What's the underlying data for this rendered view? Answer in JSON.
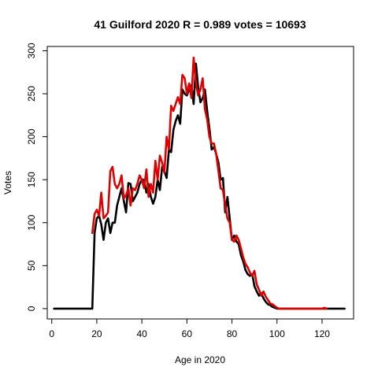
{
  "chart_data": {
    "type": "line",
    "title": "41 Guilford 2020 R = 0.989 votes = 10693",
    "xlabel": "Age in 2020",
    "ylabel": "Votes",
    "xlim": [
      -2,
      134
    ],
    "ylim": [
      -12,
      305
    ],
    "xticks": [
      0,
      20,
      40,
      60,
      80,
      100,
      120
    ],
    "yticks": [
      0,
      50,
      100,
      150,
      200,
      250,
      300
    ],
    "grid": false,
    "series": [
      {
        "color": "#000000",
        "x": [
          1,
          2,
          3,
          4,
          5,
          6,
          7,
          8,
          9,
          10,
          11,
          12,
          13,
          14,
          15,
          16,
          17,
          18,
          19,
          20,
          21,
          22,
          23,
          24,
          25,
          26,
          27,
          28,
          29,
          30,
          31,
          32,
          33,
          34,
          35,
          36,
          37,
          38,
          39,
          40,
          41,
          42,
          43,
          44,
          45,
          46,
          47,
          48,
          49,
          50,
          51,
          52,
          53,
          54,
          55,
          56,
          57,
          58,
          59,
          60,
          61,
          62,
          63,
          64,
          65,
          66,
          67,
          68,
          69,
          70,
          71,
          72,
          73,
          74,
          75,
          76,
          77,
          78,
          79,
          80,
          81,
          82,
          83,
          84,
          85,
          86,
          87,
          88,
          89,
          90,
          91,
          92,
          93,
          94,
          95,
          96,
          97,
          98,
          99,
          100,
          101,
          102,
          103,
          104,
          105,
          106,
          107,
          108,
          109,
          110,
          111,
          112,
          113,
          114,
          115,
          116,
          117,
          118,
          119,
          120,
          121,
          122,
          123,
          124,
          125,
          126,
          127,
          128,
          129,
          130
        ],
        "y": [
          0,
          0,
          0,
          0,
          0,
          0,
          0,
          0,
          0,
          0,
          0,
          0,
          0,
          0,
          0,
          0,
          0,
          0,
          88,
          105,
          108,
          98,
          80,
          100,
          105,
          88,
          100,
          100,
          120,
          130,
          140,
          125,
          112,
          146,
          145,
          125,
          130,
          135,
          145,
          150,
          150,
          135,
          145,
          130,
          122,
          130,
          150,
          138,
          165,
          160,
          152,
          185,
          182,
          208,
          218,
          225,
          215,
          255,
          250,
          248,
          255,
          260,
          238,
          285,
          258,
          240,
          245,
          255,
          230,
          210,
          185,
          188,
          180,
          170,
          150,
          152,
          112,
          130,
          105,
          80,
          85,
          78,
          75,
          62,
          55,
          45,
          40,
          38,
          40,
          26,
          20,
          15,
          18,
          12,
          8,
          5,
          4,
          2,
          1,
          0,
          0,
          0,
          0,
          0,
          0,
          0,
          0,
          0,
          0,
          0,
          0,
          0,
          0,
          0,
          0,
          0,
          0,
          0,
          0,
          0,
          0,
          0,
          0,
          0,
          0,
          0,
          0,
          0,
          0,
          0
        ]
      },
      {
        "color": "#e00000",
        "x": [
          18,
          19,
          20,
          21,
          22,
          23,
          24,
          25,
          26,
          27,
          28,
          29,
          30,
          31,
          32,
          33,
          34,
          35,
          36,
          37,
          38,
          39,
          40,
          41,
          42,
          43,
          44,
          45,
          46,
          47,
          48,
          49,
          50,
          51,
          52,
          53,
          54,
          55,
          56,
          57,
          58,
          59,
          60,
          61,
          62,
          63,
          64,
          65,
          66,
          67,
          68,
          69,
          70,
          71,
          72,
          73,
          74,
          75,
          76,
          77,
          78,
          79,
          80,
          81,
          82,
          83,
          84,
          85,
          86,
          87,
          88,
          89,
          90,
          91,
          92,
          93,
          94,
          95,
          96,
          97,
          98,
          99,
          100,
          101,
          102,
          103,
          104,
          105,
          106,
          107,
          108,
          109,
          110,
          111,
          112,
          118,
          119,
          120,
          121,
          122
        ],
        "y": [
          88,
          110,
          115,
          108,
          135,
          105,
          108,
          112,
          160,
          165,
          145,
          140,
          145,
          155,
          128,
          132,
          140,
          120,
          140,
          138,
          145,
          155,
          150,
          140,
          162,
          130,
          145,
          135,
          172,
          150,
          178,
          170,
          158,
          200,
          185,
          236,
          230,
          238,
          246,
          238,
          272,
          268,
          250,
          262,
          245,
          292,
          262,
          248,
          255,
          268,
          232,
          220,
          200,
          192,
          192,
          180,
          160,
          140,
          138,
          120,
          105,
          100,
          80,
          78,
          85,
          80,
          70,
          60,
          52,
          48,
          42,
          38,
          44,
          28,
          22,
          15,
          20,
          14,
          10,
          6,
          5,
          3,
          1,
          0,
          0,
          0,
          0,
          0,
          0,
          0,
          0,
          0,
          0,
          0,
          0,
          0,
          0,
          0,
          1,
          0
        ]
      }
    ]
  }
}
